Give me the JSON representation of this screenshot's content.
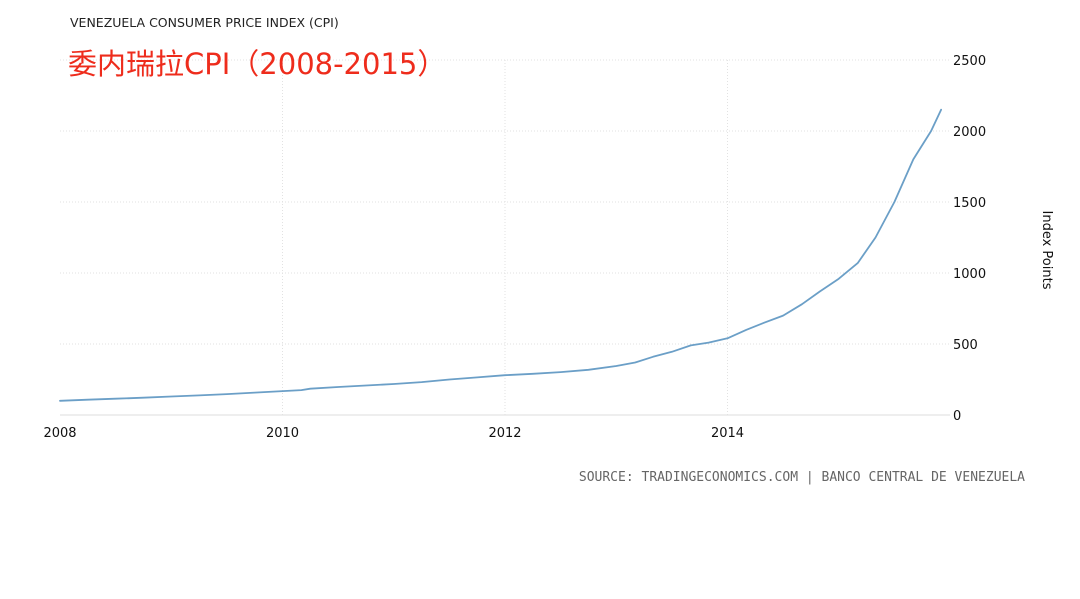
{
  "chart_data": {
    "type": "line",
    "title": "VENEZUELA CONSUMER PRICE INDEX (CPI)",
    "subtitle": "委内瑞拉CPI（2008-2015）",
    "ylabel": "Index Points",
    "xlabel": "",
    "source": "SOURCE: TRADINGECONOMICS.COM | BANCO CENTRAL DE VENEZUELA",
    "xlim": [
      2008.0,
      2016.0
    ],
    "ylim": [
      0,
      2500
    ],
    "x_ticks": [
      2008,
      2010,
      2012,
      2014
    ],
    "y_ticks": [
      0,
      500,
      1000,
      1500,
      2000,
      2500
    ],
    "grid": true,
    "axis_side_y": "right",
    "series_color": "#6b9fc7",
    "series": [
      {
        "x": [
          2008.0,
          2008.25,
          2008.5,
          2008.75,
          2009.0,
          2009.25,
          2009.5,
          2009.75,
          2010.0,
          2010.17,
          2010.25,
          2010.5,
          2010.75,
          2011.0,
          2011.25,
          2011.5,
          2011.75,
          2012.0,
          2012.25,
          2012.5,
          2012.75,
          2013.0,
          2013.17,
          2013.33,
          2013.5,
          2013.67,
          2013.83,
          2014.0,
          2014.17,
          2014.33,
          2014.5,
          2014.67,
          2014.83,
          2015.0,
          2015.17,
          2015.33,
          2015.5,
          2015.67,
          2015.83,
          2015.92
        ],
        "y": [
          100,
          108,
          115,
          122,
          130,
          138,
          147,
          158,
          168,
          175,
          185,
          197,
          208,
          218,
          232,
          250,
          265,
          280,
          290,
          302,
          318,
          345,
          370,
          410,
          445,
          490,
          510,
          540,
          600,
          650,
          700,
          780,
          870,
          960,
          1070,
          1250,
          1500,
          1800,
          2000,
          2150
        ]
      }
    ]
  }
}
